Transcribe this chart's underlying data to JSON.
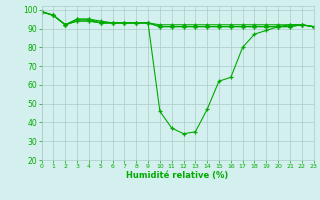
{
  "xlabel": "Humidité relative (%)",
  "background_color": "#d4f0ee",
  "grid_color": "#aacccc",
  "line_color": "#00aa00",
  "xlim": [
    0,
    23
  ],
  "ylim": [
    20,
    102
  ],
  "yticks": [
    20,
    30,
    40,
    50,
    60,
    70,
    80,
    90,
    100
  ],
  "xticks": [
    0,
    1,
    2,
    3,
    4,
    5,
    6,
    7,
    8,
    9,
    10,
    11,
    12,
    13,
    14,
    15,
    16,
    17,
    18,
    19,
    20,
    21,
    22,
    23
  ],
  "series": [
    [
      99,
      97,
      92,
      95,
      95,
      93,
      93,
      93,
      93,
      93,
      91,
      91,
      91,
      91,
      91,
      91,
      91,
      91,
      91,
      91,
      91,
      91,
      92,
      91
    ],
    [
      99,
      97,
      92,
      94,
      94,
      93,
      93,
      93,
      93,
      93,
      46,
      37,
      34,
      35,
      47,
      62,
      64,
      80,
      87,
      89,
      91,
      92,
      92,
      91
    ],
    [
      99,
      97,
      92,
      94,
      94,
      93,
      93,
      93,
      93,
      93,
      91,
      91,
      91,
      91,
      91,
      91,
      91,
      91,
      91,
      91,
      91,
      91,
      92,
      91
    ],
    [
      99,
      97,
      92,
      95,
      95,
      94,
      93,
      93,
      93,
      93,
      92,
      92,
      92,
      92,
      92,
      92,
      92,
      92,
      92,
      92,
      92,
      92,
      92,
      91
    ]
  ]
}
